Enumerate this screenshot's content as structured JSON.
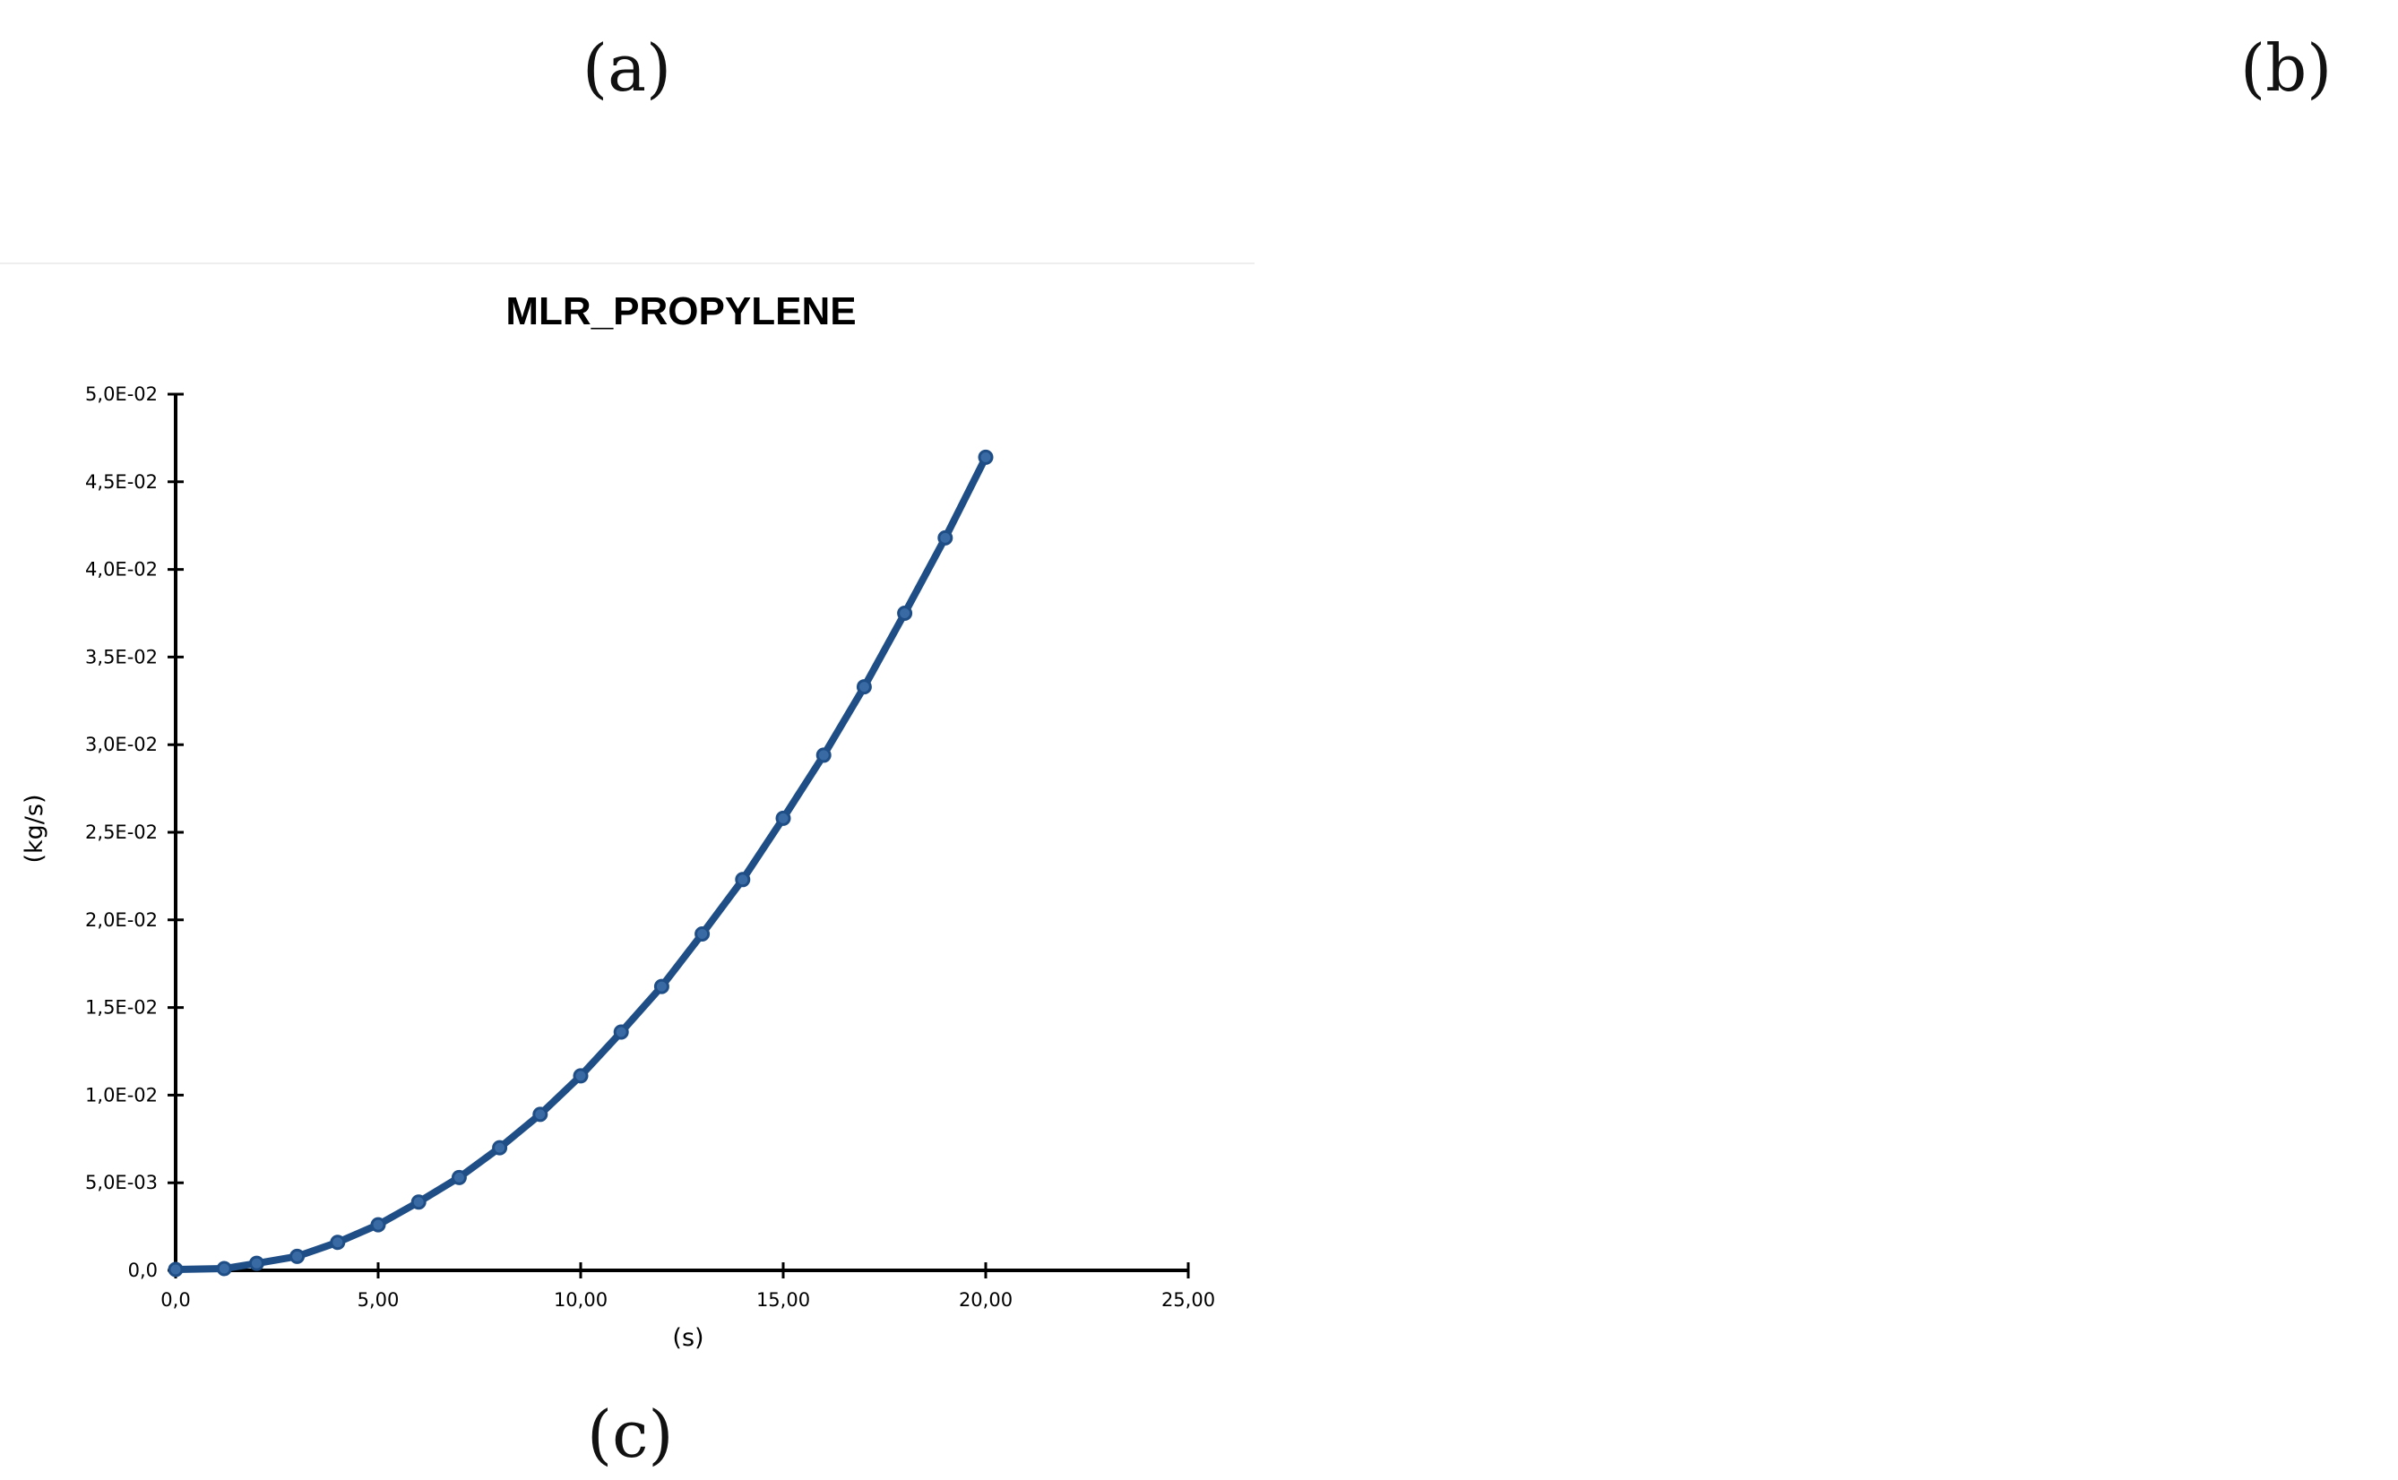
{
  "panels": {
    "a": "(a)",
    "b": "(b)",
    "c": "(c)"
  },
  "chart_data": {
    "type": "line",
    "title": "MLR_PROPYLENE",
    "xlabel": "(s)",
    "ylabel": "(kg/s)",
    "xlim": [
      0,
      25
    ],
    "ylim": [
      0,
      0.05
    ],
    "x_ticks": [
      0,
      5,
      10,
      15,
      20,
      25
    ],
    "x_tick_labels": [
      "0,0",
      "5,00",
      "10,00",
      "15,00",
      "20,00",
      "25,00"
    ],
    "y_ticks": [
      0,
      0.005,
      0.01,
      0.015,
      0.02,
      0.025,
      0.03,
      0.035,
      0.04,
      0.045,
      0.05
    ],
    "y_tick_labels": [
      "0,0",
      "5,0E-03",
      "1,0E-02",
      "1,5E-02",
      "2,0E-02",
      "2,5E-02",
      "3,0E-02",
      "3,5E-02",
      "4,0E-02",
      "4,5E-02",
      "5,0E-02"
    ],
    "grid": false,
    "line_color": "#1f4e86",
    "series": [
      {
        "x": [
          0,
          1.2,
          2,
          3,
          4,
          5,
          6,
          7,
          8,
          9,
          10,
          11,
          12,
          13,
          14,
          15,
          16,
          17,
          18,
          19,
          20
        ],
        "values": [
          5e-05,
          0.0001,
          0.0004,
          0.0008,
          0.0016,
          0.0026,
          0.0039,
          0.0053,
          0.007,
          0.0089,
          0.0111,
          0.0136,
          0.0162,
          0.0192,
          0.0223,
          0.0258,
          0.0294,
          0.0333,
          0.0375,
          0.0418,
          0.0464
        ]
      }
    ]
  }
}
